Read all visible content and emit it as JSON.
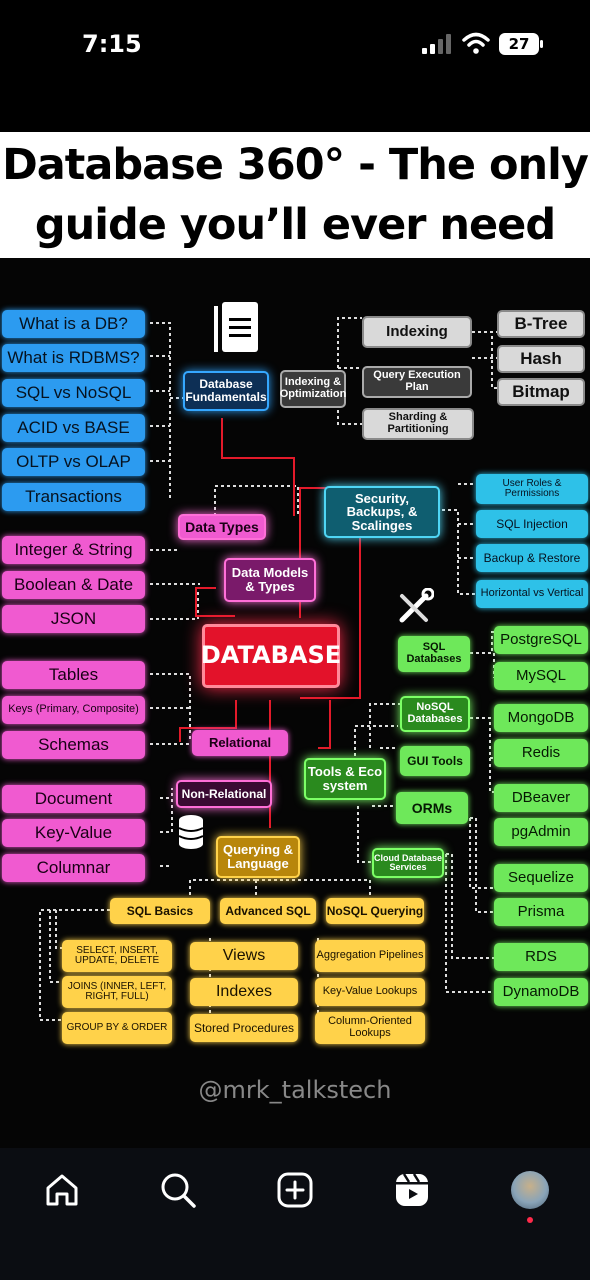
{
  "status": {
    "time": "7:15",
    "battery": "27"
  },
  "title": {
    "line1": "Database 360° - The only",
    "line2": "guide you’ll ever need"
  },
  "left_blue": [
    "What is a DB?",
    "What is RDBMS?",
    "SQL vs NoSQL",
    "ACID vs BASE",
    "OLTP vs OLAP",
    "Transactions"
  ],
  "left_pink": [
    "Integer & String",
    "Boolean & Date",
    "JSON",
    "Tables",
    "Keys (Primary, Composite)",
    "Schemas",
    "Document",
    "Key-Value",
    "Columnar"
  ],
  "hubs": {
    "db_fundamentals": "Database Fundamentals",
    "indexing_optimization": "Indexing & Optimization",
    "data_types": "Data Types",
    "data_models": "Data Models & Types",
    "security": "Security, Backups, & Scalinges",
    "database": "DATABASE",
    "relational": "Relational",
    "non_relational": "Non-Relational",
    "tools": "Tools & Eco system",
    "querying": "Querying & Language"
  },
  "indexing": {
    "indexing": "Indexing",
    "qep": "Query Execution Plan",
    "sharding": "Sharding & Partitioning",
    "btree": "B-Tree",
    "hash": "Hash",
    "bitmap": "Bitmap"
  },
  "security_items": [
    "User Roles & Permissions",
    "SQL Injection",
    "Backup & Restore",
    "Horizontal vs Vertical"
  ],
  "tools_items": {
    "sql_db": "SQL Databases",
    "nosql_db": "NoSQL Databases",
    "gui": "GUI Tools",
    "orms": "ORMs",
    "cloud": "Cloud Database Services"
  },
  "right_green": [
    "PostgreSQL",
    "MySQL",
    "MongoDB",
    "Redis",
    "DBeaver",
    "pgAdmin",
    "Sequelize",
    "Prisma",
    "RDS",
    "DynamoDB"
  ],
  "query_heads": [
    "SQL Basics",
    "Advanced SQL",
    "NoSQL Querying"
  ],
  "query_items": [
    "SELECT, INSERT, UPDATE, DELETE",
    "JOINS (INNER, LEFT, RIGHT, FULL)",
    "GROUP BY & ORDER",
    "Views",
    "Indexes",
    "Stored Procedures",
    "Aggregation Pipelines",
    "Key-Value Lookups",
    "Column-Oriented Lookups"
  ],
  "credit": "@mrk_talkstech",
  "nav": {
    "home": "home-icon",
    "search": "search-icon",
    "create": "plus-square-icon",
    "reels": "reels-icon",
    "profile": "avatar"
  }
}
